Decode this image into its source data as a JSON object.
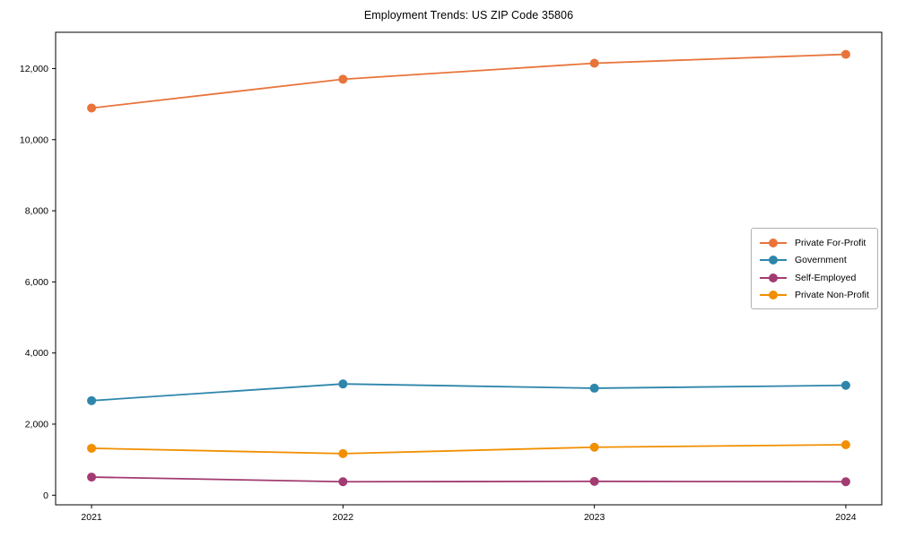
{
  "chart_data": {
    "type": "line",
    "title": "Employment Trends: US ZIP Code 35806",
    "xlabel": "",
    "ylabel": "",
    "categories": [
      "2021",
      "2022",
      "2023",
      "2024"
    ],
    "series": [
      {
        "name": "Private For-Profit",
        "color": "#E8743B",
        "values": [
          10890,
          11700,
          12150,
          12400
        ]
      },
      {
        "name": "Government",
        "color": "#2E86AB",
        "values": [
          2660,
          3130,
          3010,
          3090
        ]
      },
      {
        "name": "Self-Employed",
        "color": "#A23B72",
        "values": [
          510,
          380,
          390,
          380
        ]
      },
      {
        "name": "Private Non-Profit",
        "color": "#F18F01",
        "values": [
          1320,
          1170,
          1350,
          1420
        ]
      }
    ],
    "yticks": [
      0,
      2000,
      4000,
      6000,
      8000,
      10000,
      12000
    ],
    "ytick_labels": [
      "0",
      "2,000",
      "4,000",
      "6,000",
      "8,000",
      "10,000",
      "12,000"
    ],
    "ylim": [
      -270,
      13020
    ],
    "grid": false,
    "legend_position": "center right",
    "marker": "circle",
    "axis_color": "#000000"
  }
}
